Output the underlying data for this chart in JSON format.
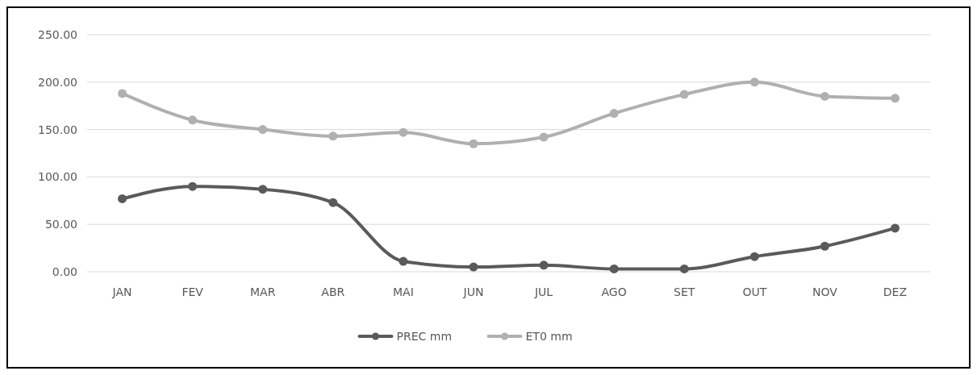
{
  "chart_data": {
    "type": "line",
    "categories": [
      "JAN",
      "FEV",
      "MAR",
      "ABR",
      "MAI",
      "JUN",
      "JUL",
      "AGO",
      "SET",
      "OUT",
      "NOV",
      "DEZ"
    ],
    "series": [
      {
        "name": "PREC mm",
        "color": "#5a5a5a",
        "values": [
          77,
          90,
          87,
          73,
          11,
          5,
          7,
          3,
          3,
          16,
          27,
          46
        ]
      },
      {
        "name": "ET0 mm",
        "color": "#b0b0b0",
        "values": [
          188,
          160,
          150,
          143,
          147,
          135,
          142,
          167,
          187,
          200,
          185,
          183
        ]
      }
    ],
    "ylim": [
      0,
      250
    ],
    "yticks": [
      {
        "value": 0,
        "label": "0.00"
      },
      {
        "value": 50,
        "label": "50.00"
      },
      {
        "value": 100,
        "label": "100.00"
      },
      {
        "value": 150,
        "label": "150.00"
      },
      {
        "value": 200,
        "label": "200.00"
      },
      {
        "value": 250,
        "label": "250.00"
      }
    ],
    "grid": "y",
    "legend": "bottom",
    "marker": "circle",
    "line_style": "solid"
  }
}
